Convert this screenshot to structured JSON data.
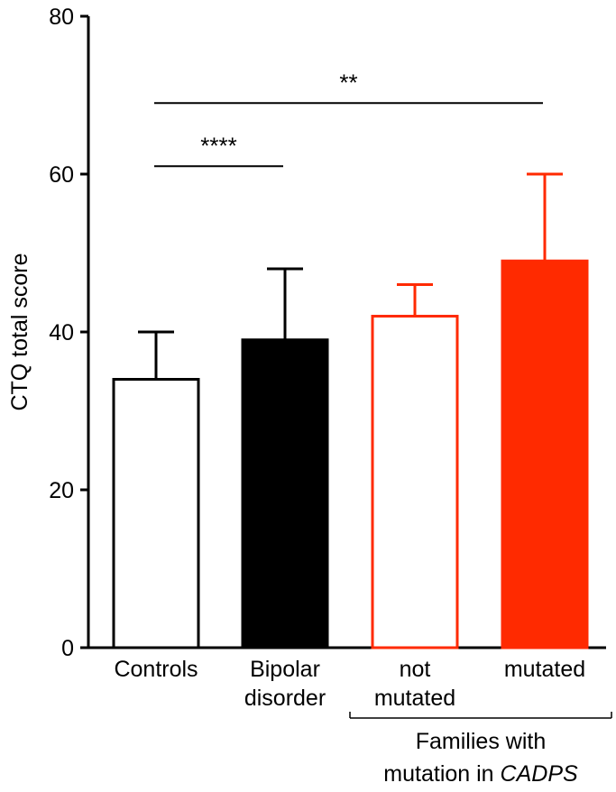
{
  "chart_data": {
    "type": "bar",
    "ylabel": "CTQ total score",
    "ylim": [
      0,
      80
    ],
    "yticks": [
      0,
      20,
      40,
      60,
      80
    ],
    "categories": [
      {
        "lines": [
          "Controls"
        ],
        "value": 34,
        "error": 6,
        "fill": "#ffffff",
        "stroke": "#000000"
      },
      {
        "lines": [
          "Bipolar",
          "disorder"
        ],
        "value": 39,
        "error": 9,
        "fill": "#000000",
        "stroke": "#000000"
      },
      {
        "lines": [
          "not",
          "mutated"
        ],
        "value": 42,
        "error": 4,
        "fill": "#ffffff",
        "stroke": "#ff2a00"
      },
      {
        "lines": [
          "mutated"
        ],
        "value": 49,
        "error": 11,
        "fill": "#ff2a00",
        "stroke": "#ff2a00"
      }
    ],
    "significance": [
      {
        "from": 0,
        "to": 1,
        "label": "****",
        "level": 61
      },
      {
        "from": 0,
        "to": 3,
        "label": "**",
        "level": 69
      }
    ],
    "group_bracket": {
      "from": 2,
      "to": 3,
      "line1": "Families with",
      "line2_prefix": "mutation in ",
      "line2_italic": "CADPS"
    },
    "grid": false,
    "legend": "none"
  }
}
